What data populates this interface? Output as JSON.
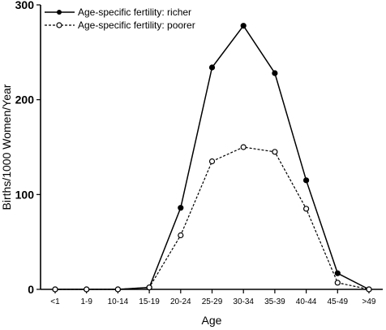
{
  "chart_data": {
    "type": "line",
    "xlabel": "Age",
    "ylabel": "Births/1000 Women/Year",
    "ylim": [
      0,
      300
    ],
    "yticks": [
      0,
      100,
      200,
      300
    ],
    "grid": false,
    "legend_position": "top-left",
    "categories": [
      "<1",
      "1-9",
      "10-14",
      "15-19",
      "20-24",
      "25-29",
      "30-34",
      "35-39",
      "40-44",
      "45-49",
      ">49"
    ],
    "series": [
      {
        "name": "Age-specific fertility: richer",
        "marker": "filled-circle",
        "line_style": "solid",
        "values": [
          0,
          0,
          0,
          2,
          86,
          234,
          278,
          228,
          115,
          17,
          0
        ]
      },
      {
        "name": "Age-specific fertility: poorer",
        "marker": "open-circle",
        "line_style": "dashed",
        "values": [
          0,
          0,
          0,
          2,
          57,
          135,
          150,
          145,
          85,
          7,
          0
        ]
      }
    ]
  }
}
